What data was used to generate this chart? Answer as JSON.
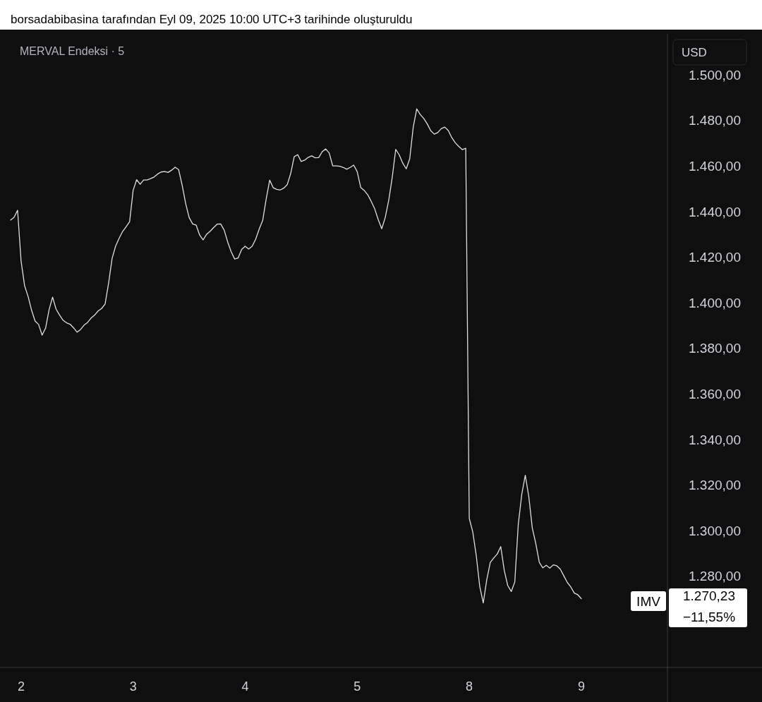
{
  "chart_data": {
    "type": "line",
    "title": "MERVAL Endeksi · 5",
    "annotations": [
      "borsadabibasina tarafından Eyl 09, 2025 10:00 UTC+3 tarihinde oluşturuldu",
      "USD",
      "IMV",
      "1.270,23",
      "−11,55%"
    ],
    "categories": [
      null,
      null,
      null,
      "2",
      null,
      null,
      null,
      null,
      null,
      null,
      null,
      null,
      null,
      null,
      null,
      null,
      null,
      null,
      null,
      null,
      null,
      null,
      null,
      null,
      null,
      null,
      null,
      null,
      null,
      null,
      null,
      null,
      null,
      null,
      null,
      "3",
      null,
      null,
      null,
      null,
      null,
      null,
      null,
      null,
      null,
      null,
      null,
      null,
      null,
      null,
      null,
      null,
      null,
      null,
      null,
      null,
      null,
      null,
      null,
      null,
      null,
      null,
      null,
      null,
      null,
      null,
      null,
      "4",
      null,
      null,
      null,
      null,
      null,
      null,
      null,
      null,
      null,
      null,
      null,
      null,
      null,
      null,
      null,
      null,
      null,
      null,
      null,
      null,
      null,
      null,
      null,
      null,
      null,
      null,
      null,
      null,
      null,
      null,
      null,
      "5",
      null,
      null,
      null,
      null,
      null,
      null,
      null,
      null,
      null,
      null,
      null,
      null,
      null,
      null,
      null,
      null,
      null,
      null,
      null,
      null,
      null,
      null,
      null,
      null,
      null,
      null,
      null,
      null,
      null,
      null,
      null,
      "8",
      null,
      null,
      null,
      null,
      null,
      null,
      null,
      null,
      null,
      null,
      null,
      null,
      null,
      null,
      null,
      null,
      null,
      null,
      null,
      null,
      null,
      null,
      null,
      null,
      null,
      null,
      null,
      null,
      null,
      null,
      null,
      "9",
      null,
      null,
      null,
      null,
      null,
      null,
      null,
      null,
      null,
      null,
      null,
      null,
      null,
      null,
      null,
      null,
      null,
      null,
      null,
      null,
      null,
      null,
      null,
      null
    ],
    "series": [
      {
        "color": "#e0e0e0",
        "values": [
          1436.3,
          1437.5,
          1440.6,
          1418.3,
          1407.5,
          1402.8,
          1396.7,
          1392.0,
          1390.5,
          1385.8,
          1388.9,
          1397.0,
          1402.5,
          1397.2,
          1394.6,
          1392.3,
          1391.2,
          1390.6,
          1389.0,
          1387.1,
          1388.3,
          1390.2,
          1391.4,
          1393.3,
          1394.6,
          1396.4,
          1397.5,
          1399.5,
          1408.7,
          1419.5,
          1424.9,
          1428.3,
          1431.3,
          1433.4,
          1435.6,
          1449.3,
          1454.0,
          1452.0,
          1453.9,
          1453.9,
          1454.5,
          1455.2,
          1456.5,
          1457.4,
          1457.6,
          1457.2,
          1458.2,
          1459.5,
          1458.4,
          1451.6,
          1443.6,
          1437.4,
          1434.6,
          1434.1,
          1429.7,
          1427.6,
          1430.1,
          1431.4,
          1433.0,
          1434.5,
          1434.6,
          1431.9,
          1426.7,
          1422.4,
          1419.2,
          1419.7,
          1423.4,
          1424.8,
          1423.6,
          1424.8,
          1427.9,
          1432.3,
          1436.1,
          1445.5,
          1453.8,
          1450.5,
          1449.8,
          1449.5,
          1450.3,
          1451.8,
          1456.7,
          1464.1,
          1465.0,
          1462.0,
          1462.6,
          1463.8,
          1464.5,
          1463.6,
          1463.7,
          1466.3,
          1467.5,
          1465.7,
          1460.1,
          1460.1,
          1459.9,
          1459.4,
          1458.6,
          1459.4,
          1460.4,
          1457.5,
          1450.6,
          1449.3,
          1447.4,
          1444.5,
          1441.2,
          1436.5,
          1432.5,
          1437.4,
          1445.0,
          1455.0,
          1467.3,
          1464.9,
          1461.3,
          1458.8,
          1463.2,
          1477.1,
          1485.1,
          1482.6,
          1480.9,
          1478.5,
          1475.5,
          1474.0,
          1474.7,
          1476.4,
          1477.1,
          1475.6,
          1472.5,
          1470.2,
          1468.6,
          1467.2,
          1467.8,
          1305.4,
          1299.5,
          1289.0,
          1275.5,
          1268.3,
          1278.5,
          1286.1,
          1288.0,
          1289.8,
          1293.0,
          1282.5,
          1275.9,
          1273.3,
          1277.5,
          1302.8,
          1316.0,
          1324.3,
          1315.0,
          1301.2,
          1294.4,
          1286.1,
          1283.7,
          1284.8,
          1283.6,
          1285.0,
          1284.6,
          1283.1,
          1280.2,
          1277.3,
          1275.3,
          1272.6,
          1271.9,
          1270.2,
          null,
          null,
          null,
          null,
          null,
          null,
          null,
          null,
          null,
          null,
          null,
          null,
          null,
          null,
          null,
          null,
          null,
          null,
          null,
          null,
          null,
          null,
          null,
          null
        ]
      }
    ],
    "ylim": [
      1240,
      1518
    ],
    "yticks": [
      {
        "value": 1280,
        "label": "1.280,00"
      },
      {
        "value": 1300,
        "label": "1.300,00"
      },
      {
        "value": 1320,
        "label": "1.320,00"
      },
      {
        "value": 1340,
        "label": "1.340,00"
      },
      {
        "value": 1360,
        "label": "1.360,00"
      },
      {
        "value": 1380,
        "label": "1.380,00"
      },
      {
        "value": 1400,
        "label": "1.400,00"
      },
      {
        "value": 1420,
        "label": "1.420,00"
      },
      {
        "value": 1440,
        "label": "1.440,00"
      },
      {
        "value": 1460,
        "label": "1.460,00"
      },
      {
        "value": 1480,
        "label": "1.480,00"
      },
      {
        "value": 1500,
        "label": "1.500,00"
      }
    ],
    "grid": false,
    "marker": "none",
    "line_style": "solid"
  }
}
